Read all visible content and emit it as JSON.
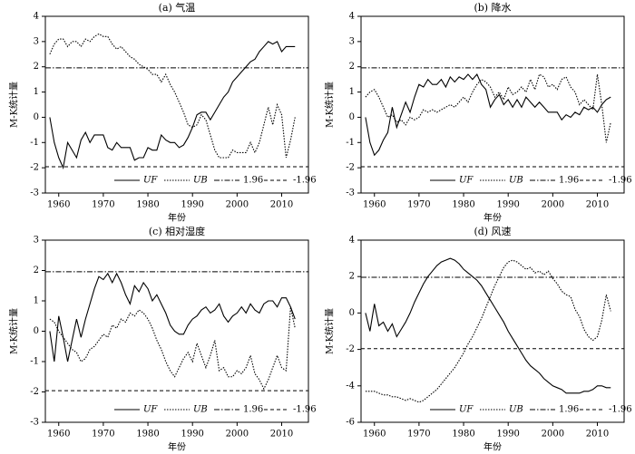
{
  "chart_data": [
    {
      "type": "line",
      "title": "(a) 气温",
      "x_label": "年份",
      "y_label": "M-K统计量",
      "x": [
        1958,
        1959,
        1960,
        1961,
        1962,
        1963,
        1964,
        1965,
        1966,
        1967,
        1968,
        1969,
        1970,
        1971,
        1972,
        1973,
        1974,
        1975,
        1976,
        1977,
        1978,
        1979,
        1980,
        1981,
        1982,
        1983,
        1984,
        1985,
        1986,
        1987,
        1988,
        1989,
        1990,
        1991,
        1992,
        1993,
        1994,
        1995,
        1996,
        1997,
        1998,
        1999,
        2000,
        2001,
        2002,
        2003,
        2004,
        2005,
        2006,
        2007,
        2008,
        2009,
        2010,
        2011,
        2012,
        2013
      ],
      "series": [
        {
          "name": "UF",
          "color": "#000000",
          "style": "solid",
          "values": [
            0,
            -1,
            -1.6,
            -2,
            -1,
            -1.3,
            -1.6,
            -0.9,
            -0.6,
            -1,
            -0.7,
            -0.7,
            -0.7,
            -1.2,
            -1.3,
            -1,
            -1.2,
            -1.2,
            -1.2,
            -1.7,
            -1.6,
            -1.6,
            -1.2,
            -1.3,
            -1.3,
            -0.7,
            -0.9,
            -1,
            -1,
            -1.2,
            -1.1,
            -0.8,
            -0.4,
            0.1,
            0.2,
            0.2,
            -0.1,
            0.2,
            0.5,
            0.8,
            1,
            1.4,
            1.6,
            1.8,
            2,
            2.2,
            2.3,
            2.6,
            2.8,
            3,
            2.9,
            3,
            2.6,
            2.8,
            2.8,
            2.8
          ]
        },
        {
          "name": "UB",
          "color": "#000000",
          "style": "dotted",
          "values": [
            2.5,
            2.9,
            3.1,
            3.1,
            2.8,
            3,
            3,
            2.8,
            3.1,
            3,
            3.2,
            3.3,
            3.2,
            3.2,
            2.9,
            2.7,
            2.8,
            2.6,
            2.4,
            2.3,
            2.1,
            2,
            1.9,
            1.7,
            1.7,
            1.4,
            1.7,
            1.3,
            1,
            0.6,
            0.2,
            -0.3,
            -0.4,
            -0.3,
            0.1,
            -0.1,
            -0.7,
            -1.3,
            -1.6,
            -1.6,
            -1.6,
            -1.3,
            -1.4,
            -1.4,
            -1.4,
            -1,
            -1.4,
            -1,
            -0.3,
            0.4,
            -0.3,
            0.5,
            0.1,
            -1.6,
            -0.9,
            0
          ]
        }
      ],
      "reference_lines": [
        {
          "name": "1.96",
          "value": 1.96,
          "color": "#000000",
          "style": "dashdot"
        },
        {
          "name": "-1.96",
          "value": -1.96,
          "color": "#000000",
          "style": "dashed"
        }
      ],
      "xlim": [
        1957,
        2016
      ],
      "xticks": [
        1960,
        1970,
        1980,
        1990,
        2000,
        2010
      ],
      "ylim": [
        -3,
        4
      ],
      "yticks": [
        -3,
        -2,
        -1,
        0,
        1,
        2,
        3,
        4
      ],
      "legend": "lower right"
    },
    {
      "type": "line",
      "title": "(b) 降水",
      "x_label": "年份",
      "y_label": "M-K统计量",
      "x": [
        1958,
        1959,
        1960,
        1961,
        1962,
        1963,
        1964,
        1965,
        1966,
        1967,
        1968,
        1969,
        1970,
        1971,
        1972,
        1973,
        1974,
        1975,
        1976,
        1977,
        1978,
        1979,
        1980,
        1981,
        1982,
        1983,
        1984,
        1985,
        1986,
        1987,
        1988,
        1989,
        1990,
        1991,
        1992,
        1993,
        1994,
        1995,
        1996,
        1997,
        1998,
        1999,
        2000,
        2001,
        2002,
        2003,
        2004,
        2005,
        2006,
        2007,
        2008,
        2009,
        2010,
        2011,
        2012,
        2013
      ],
      "series": [
        {
          "name": "UF",
          "color": "#000000",
          "style": "solid",
          "values": [
            0,
            -1,
            -1.5,
            -1.3,
            -0.9,
            -0.6,
            0.4,
            -0.4,
            0.1,
            0.6,
            0.2,
            0.8,
            1.3,
            1.2,
            1.5,
            1.3,
            1.3,
            1.5,
            1.2,
            1.6,
            1.4,
            1.6,
            1.5,
            1.7,
            1.5,
            1.7,
            1.3,
            1.1,
            0.4,
            0.7,
            0.9,
            0.5,
            0.7,
            0.4,
            0.7,
            0.4,
            0.8,
            0.6,
            0.4,
            0.6,
            0.4,
            0.2,
            0.2,
            0.2,
            -0.1,
            0.1,
            0,
            0.2,
            0.1,
            0.4,
            0.3,
            0.4,
            0.2,
            0.5,
            0.7,
            0.8
          ]
        },
        {
          "name": "UB",
          "color": "#000000",
          "style": "dotted",
          "values": [
            0.8,
            1,
            1.1,
            0.8,
            0.4,
            0,
            0.1,
            -0.2,
            -0.1,
            -0.3,
            0,
            -0.1,
            0,
            0.3,
            0.2,
            0.3,
            0.2,
            0.3,
            0.4,
            0.5,
            0.4,
            0.6,
            0.8,
            0.6,
            1,
            1.3,
            1.5,
            1.4,
            1.2,
            0.8,
            1,
            0.7,
            1.2,
            0.9,
            1,
            1.2,
            1,
            1.5,
            1.1,
            1.7,
            1.6,
            1.2,
            1.3,
            1.1,
            1.5,
            1.6,
            1.2,
            1,
            0.5,
            0.7,
            0.5,
            0.3,
            1.7,
            0.5,
            -1,
            -0.2
          ]
        }
      ],
      "reference_lines": [
        {
          "name": "1.96",
          "value": 1.96,
          "color": "#000000",
          "style": "dashdot"
        },
        {
          "name": "-1.96",
          "value": -1.96,
          "color": "#000000",
          "style": "dashed"
        }
      ],
      "xlim": [
        1957,
        2016
      ],
      "xticks": [
        1960,
        1970,
        1980,
        1990,
        2000,
        2010
      ],
      "ylim": [
        -3,
        4
      ],
      "yticks": [
        -3,
        -2,
        -1,
        0,
        1,
        2,
        3,
        4
      ],
      "legend": "lower right"
    },
    {
      "type": "line",
      "title": "(c) 相对湿度",
      "x_label": "年份",
      "y_label": "M-K统计量",
      "x": [
        1958,
        1959,
        1960,
        1961,
        1962,
        1963,
        1964,
        1965,
        1966,
        1967,
        1968,
        1969,
        1970,
        1971,
        1972,
        1973,
        1974,
        1975,
        1976,
        1977,
        1978,
        1979,
        1980,
        1981,
        1982,
        1983,
        1984,
        1985,
        1986,
        1987,
        1988,
        1989,
        1990,
        1991,
        1992,
        1993,
        1994,
        1995,
        1996,
        1997,
        1998,
        1999,
        2000,
        2001,
        2002,
        2003,
        2004,
        2005,
        2006,
        2007,
        2008,
        2009,
        2010,
        2011,
        2012,
        2013
      ],
      "series": [
        {
          "name": "UF",
          "color": "#000000",
          "style": "solid",
          "values": [
            0,
            -1,
            0.5,
            -0.2,
            -1,
            -0.3,
            0.4,
            -0.2,
            0.4,
            0.9,
            1.4,
            1.8,
            1.7,
            1.9,
            1.6,
            1.9,
            1.6,
            1.2,
            0.9,
            1.5,
            1.3,
            1.6,
            1.4,
            1,
            1.2,
            0.9,
            0.6,
            0.2,
            0,
            -0.1,
            -0.1,
            0.2,
            0.4,
            0.5,
            0.7,
            0.8,
            0.6,
            0.7,
            0.9,
            0.5,
            0.3,
            0.5,
            0.6,
            0.8,
            0.6,
            0.9,
            0.7,
            0.6,
            0.9,
            1,
            1,
            0.8,
            1.1,
            1.1,
            0.8,
            0.4
          ]
        },
        {
          "name": "UB",
          "color": "#000000",
          "style": "dotted",
          "values": [
            0.4,
            0.3,
            0,
            -0.2,
            -0.4,
            -0.6,
            -0.7,
            -1,
            -0.9,
            -0.6,
            -0.5,
            -0.3,
            -0.1,
            -0.2,
            0.2,
            0.1,
            0.4,
            0.3,
            0.6,
            0.5,
            0.7,
            0.6,
            0.4,
            0.1,
            -0.3,
            -0.6,
            -1,
            -1.3,
            -1.5,
            -1.2,
            -0.9,
            -0.7,
            -1,
            -0.4,
            -0.8,
            -1.2,
            -0.8,
            -0.3,
            -1.3,
            -1.2,
            -1.5,
            -1.5,
            -1.3,
            -1.4,
            -1.2,
            -0.8,
            -1.4,
            -1.6,
            -1.9,
            -1.6,
            -1.2,
            -0.8,
            -1.2,
            -1.3,
            0.8,
            0.1
          ]
        }
      ],
      "reference_lines": [
        {
          "name": "1.96",
          "value": 1.96,
          "color": "#000000",
          "style": "dashdot"
        },
        {
          "name": "-1.96",
          "value": -1.96,
          "color": "#000000",
          "style": "dashed"
        }
      ],
      "xlim": [
        1957,
        2016
      ],
      "xticks": [
        1960,
        1970,
        1980,
        1990,
        2000,
        2010
      ],
      "ylim": [
        -3,
        3
      ],
      "yticks": [
        -3,
        -2,
        -1,
        0,
        1,
        2,
        3
      ],
      "legend": "lower right"
    },
    {
      "type": "line",
      "title": "(d) 风速",
      "x_label": "年份",
      "y_label": "M-K统计量",
      "x": [
        1958,
        1959,
        1960,
        1961,
        1962,
        1963,
        1964,
        1965,
        1966,
        1967,
        1968,
        1969,
        1970,
        1971,
        1972,
        1973,
        1974,
        1975,
        1976,
        1977,
        1978,
        1979,
        1980,
        1981,
        1982,
        1983,
        1984,
        1985,
        1986,
        1987,
        1988,
        1989,
        1990,
        1991,
        1992,
        1993,
        1994,
        1995,
        1996,
        1997,
        1998,
        1999,
        2000,
        2001,
        2002,
        2003,
        2004,
        2005,
        2006,
        2007,
        2008,
        2009,
        2010,
        2011,
        2012,
        2013
      ],
      "series": [
        {
          "name": "UF",
          "color": "#000000",
          "style": "solid",
          "values": [
            0,
            -1,
            0.5,
            -0.7,
            -0.5,
            -1,
            -0.6,
            -1.3,
            -0.9,
            -0.5,
            0,
            0.6,
            1.1,
            1.6,
            2,
            2.3,
            2.6,
            2.8,
            2.9,
            3,
            2.9,
            2.7,
            2.4,
            2.2,
            2,
            1.8,
            1.5,
            1.1,
            0.7,
            0.3,
            -0.1,
            -0.5,
            -1,
            -1.4,
            -1.8,
            -2.2,
            -2.6,
            -2.9,
            -3.1,
            -3.3,
            -3.6,
            -3.8,
            -4,
            -4.1,
            -4.2,
            -4.4,
            -4.4,
            -4.4,
            -4.4,
            -4.3,
            -4.3,
            -4.2,
            -4,
            -4,
            -4.1,
            -4.1
          ]
        },
        {
          "name": "UB",
          "color": "#000000",
          "style": "dotted",
          "values": [
            -4.3,
            -4.3,
            -4.3,
            -4.4,
            -4.5,
            -4.5,
            -4.6,
            -4.6,
            -4.7,
            -4.8,
            -4.7,
            -4.8,
            -4.9,
            -4.8,
            -4.6,
            -4.4,
            -4.2,
            -3.9,
            -3.6,
            -3.3,
            -3,
            -2.6,
            -2.2,
            -1.7,
            -1.3,
            -0.8,
            -0.3,
            0.3,
            0.9,
            1.5,
            2,
            2.5,
            2.8,
            2.9,
            2.8,
            2.6,
            2.4,
            2.5,
            2.2,
            2.3,
            2.1,
            2.3,
            1.9,
            1.6,
            1.2,
            1,
            0.9,
            0.2,
            -0.2,
            -0.9,
            -1.3,
            -1.5,
            -1.3,
            -0.4,
            1,
            0.1
          ]
        }
      ],
      "reference_lines": [
        {
          "name": "1.96",
          "value": 1.96,
          "color": "#000000",
          "style": "dashdot"
        },
        {
          "name": "-1.96",
          "value": -1.96,
          "color": "#000000",
          "style": "dashed"
        }
      ],
      "xlim": [
        1957,
        2016
      ],
      "xticks": [
        1960,
        1970,
        1980,
        1990,
        2000,
        2010
      ],
      "ylim": [
        -6,
        4
      ],
      "yticks": [
        -6,
        -4,
        -2,
        0,
        2,
        4
      ],
      "legend": "lower right"
    }
  ]
}
